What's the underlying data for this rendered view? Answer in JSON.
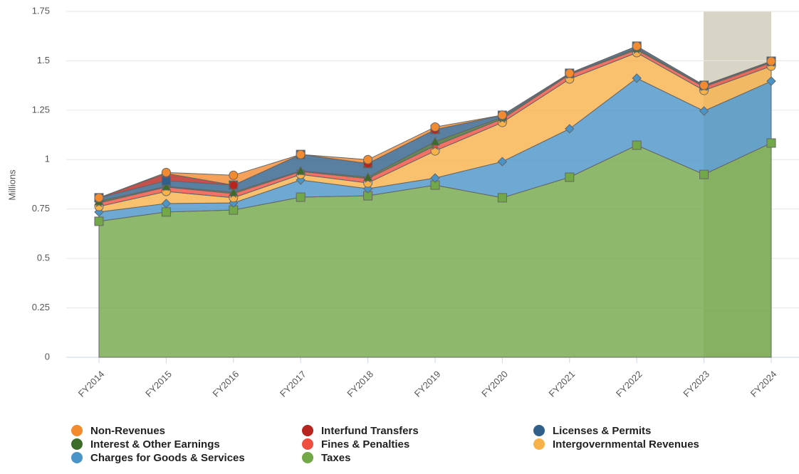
{
  "chart_data": {
    "type": "stacked_area",
    "y_axis_label": "Millions",
    "categories": [
      "FY2014",
      "FY2015",
      "FY2016",
      "FY2017",
      "FY2018",
      "FY2019",
      "FY2020",
      "FY2021",
      "FY2022",
      "FY2023",
      "FY2024"
    ],
    "ylim": [
      0,
      1.75
    ],
    "yticks": [
      0,
      0.25,
      0.5,
      0.75,
      1,
      1.25,
      1.5,
      1.75
    ],
    "grid": true,
    "legend": "bottom",
    "series": [
      {
        "name": "Non-Revenues",
        "color": "#f28a30",
        "marker": "circle",
        "values": [
          0,
          0.005,
          0.05,
          0,
          0.02,
          0.013,
          0.001,
          0,
          0,
          0,
          0
        ]
      },
      {
        "name": "Interfund Transfers",
        "color": "#b8251f",
        "marker": "circle",
        "values": [
          0,
          0.037,
          0,
          0,
          0,
          0,
          0,
          0,
          0,
          0,
          0
        ]
      },
      {
        "name": "Licenses & Permits",
        "color": "#2f5f8a",
        "marker": "square",
        "values": [
          0.018,
          0.029,
          0.036,
          0.083,
          0.069,
          0.061,
          0.01,
          0.004,
          0.011,
          0.004,
          0.004
        ]
      },
      {
        "name": "Interest & Other Earnings",
        "color": "#3d6b2a",
        "marker": "triangle",
        "values": [
          0.008,
          0.003,
          0.007,
          0.003,
          0.007,
          0.021,
          0.008,
          0.003,
          0.007,
          0.004,
          0.003
        ]
      },
      {
        "name": "Fines & Penalties",
        "color": "#f04e3e",
        "marker": "star",
        "values": [
          0.018,
          0.022,
          0.021,
          0.015,
          0.022,
          0.026,
          0.018,
          0.022,
          0.015,
          0.018,
          0.018
        ]
      },
      {
        "name": "Intergovernmental Revenues",
        "color": "#f8b24a",
        "marker": "circle",
        "values": [
          0.028,
          0.061,
          0.026,
          0.028,
          0.029,
          0.137,
          0.198,
          0.252,
          0.129,
          0.104,
          0.076
        ]
      },
      {
        "name": "Charges for Goods & Services",
        "color": "#4a94c8",
        "marker": "diamond",
        "values": [
          0.047,
          0.043,
          0.036,
          0.087,
          0.036,
          0.036,
          0.183,
          0.245,
          0.339,
          0.321,
          0.313
        ]
      },
      {
        "name": "Taxes",
        "color": "#72a847",
        "marker": "square",
        "values": [
          0.688,
          0.735,
          0.745,
          0.81,
          0.817,
          0.871,
          0.807,
          0.911,
          1.073,
          0.925,
          1.084
        ]
      }
    ]
  }
}
